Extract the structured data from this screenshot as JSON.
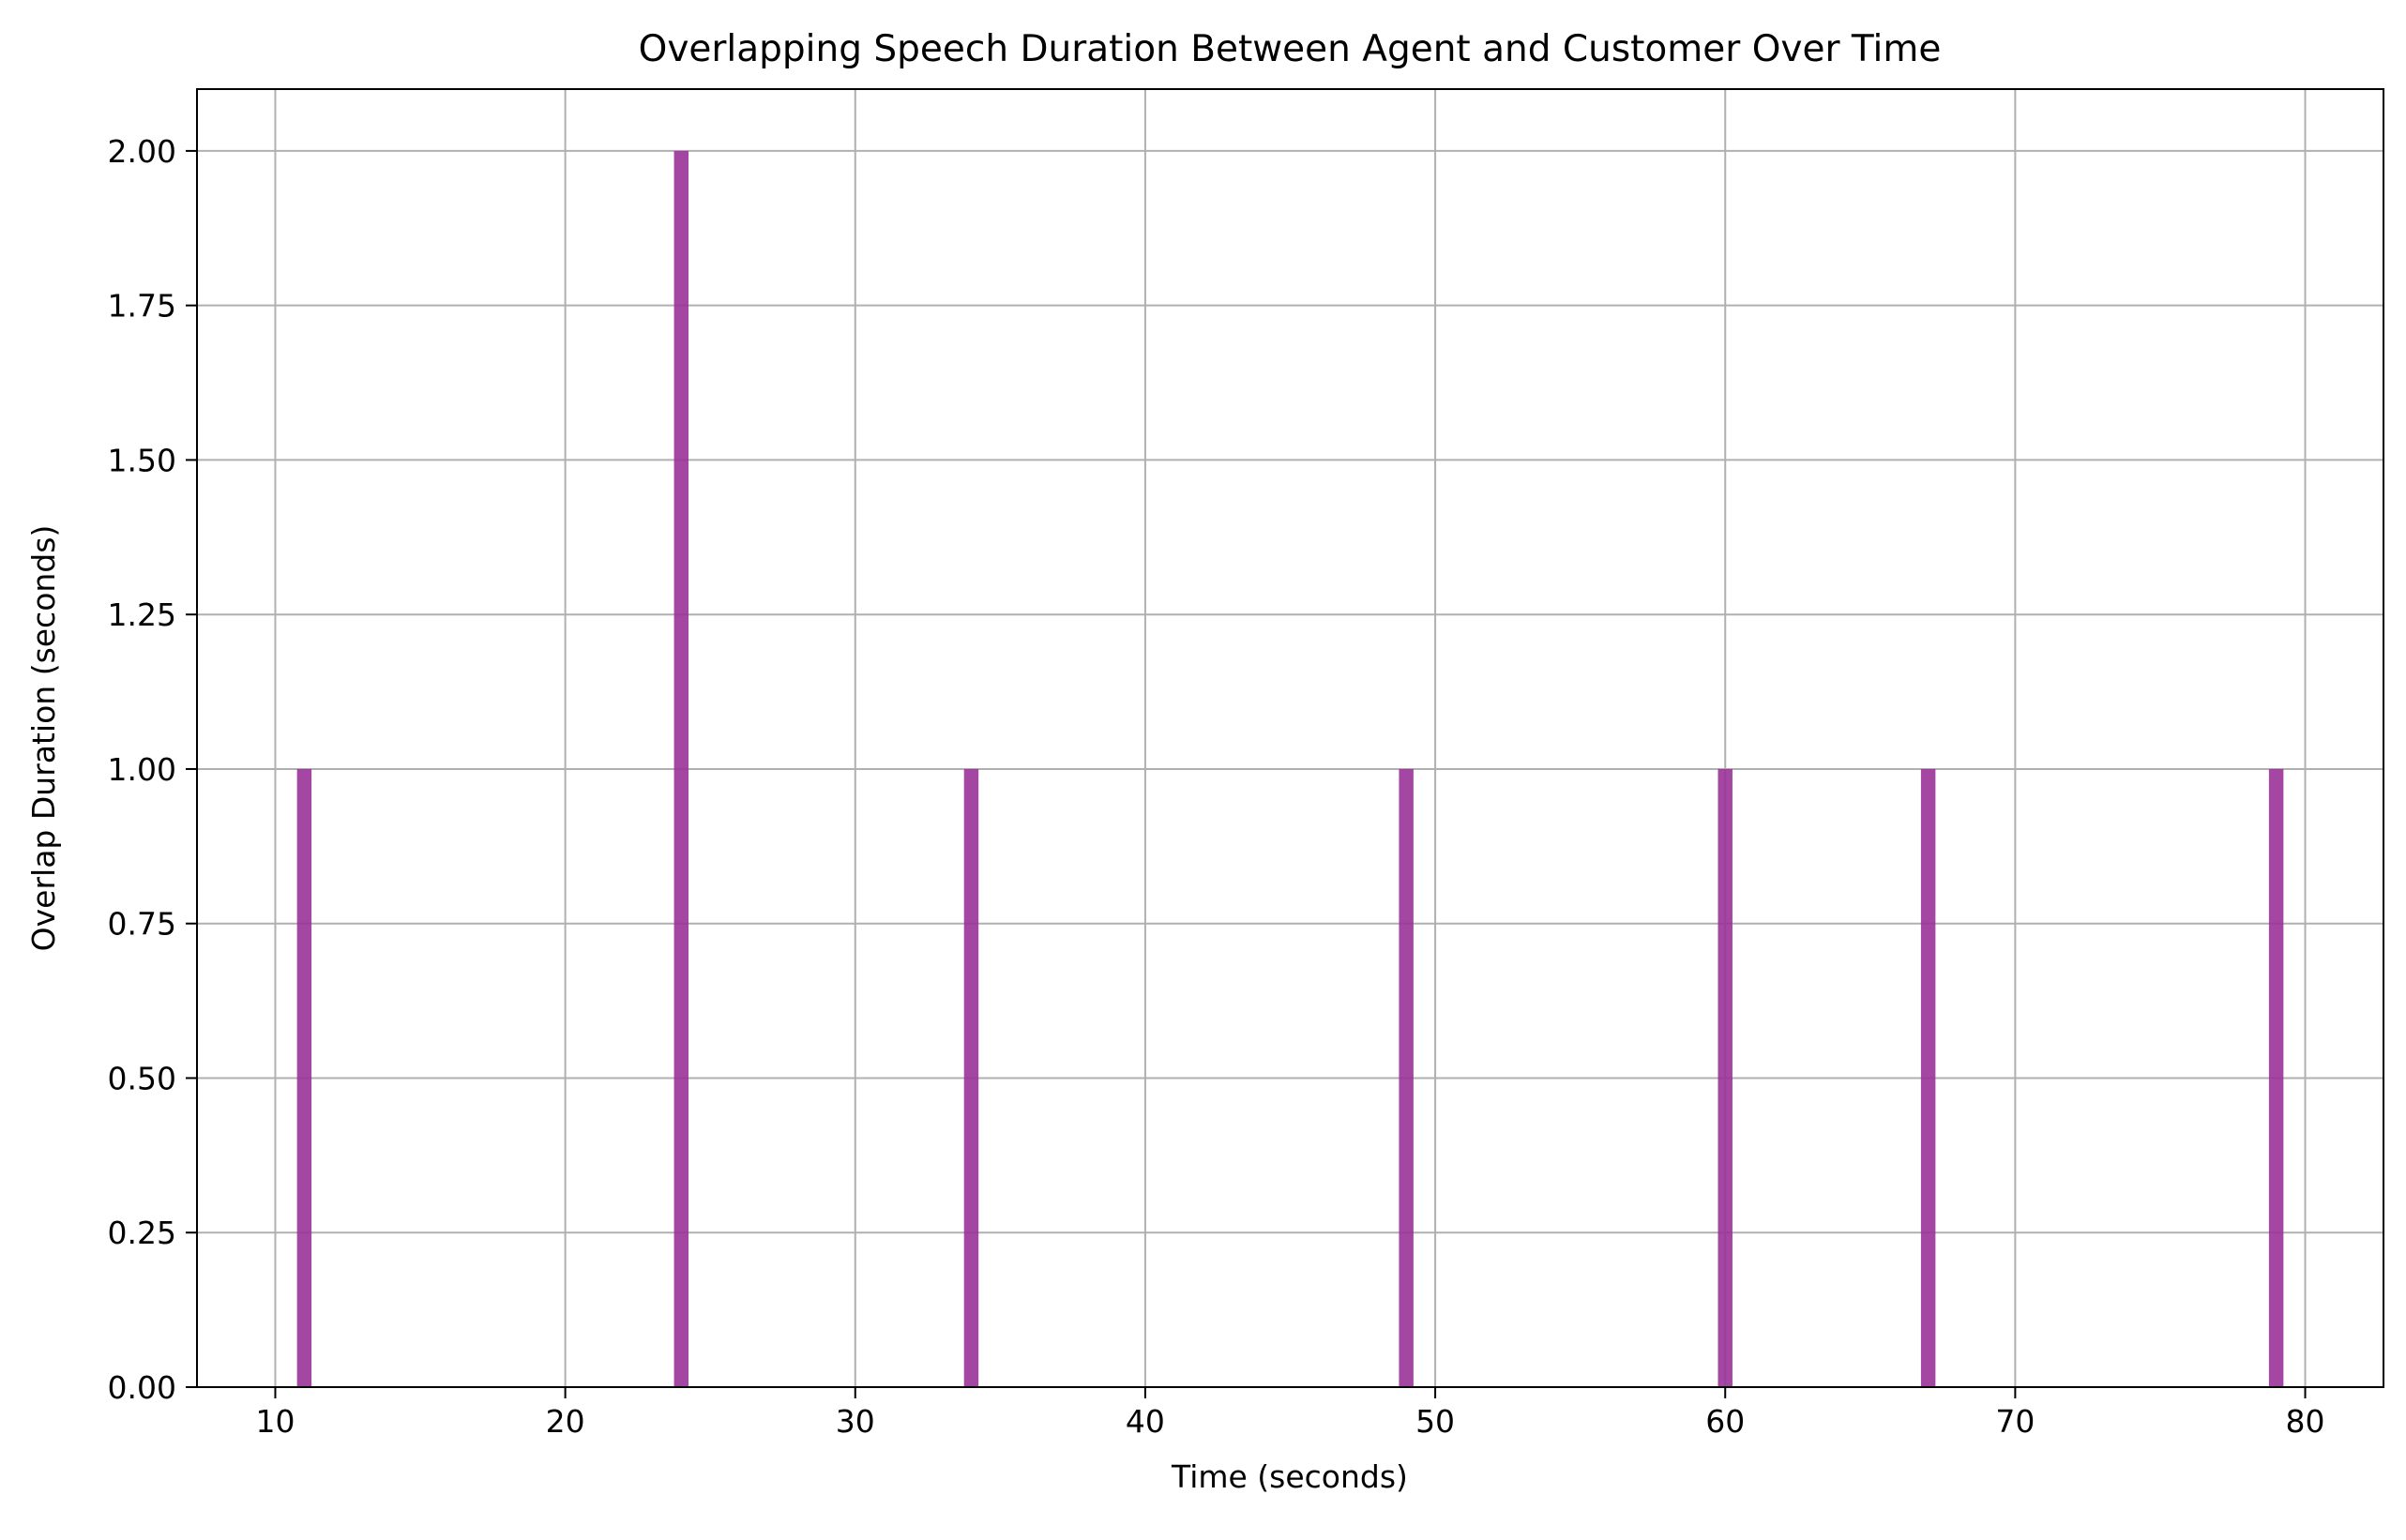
{
  "chart_data": {
    "type": "bar",
    "title": "Overlapping Speech Duration Between Agent and Customer Over Time",
    "xlabel": "Time (seconds)",
    "ylabel": "Overlap Duration (seconds)",
    "x": [
      11,
      24,
      34,
      49,
      60,
      67,
      79
    ],
    "values": [
      1.0,
      2.0,
      1.0,
      1.0,
      1.0,
      1.0,
      1.0
    ],
    "bar_width": 0.5,
    "xlim": [
      7.3,
      82.7
    ],
    "ylim": [
      0,
      2.1
    ],
    "xticks": [
      10,
      20,
      30,
      40,
      50,
      60,
      70,
      80
    ],
    "xtick_labels": [
      "10",
      "20",
      "30",
      "40",
      "50",
      "60",
      "70",
      "80"
    ],
    "yticks": [
      0,
      0.25,
      0.5,
      0.75,
      1.0,
      1.25,
      1.5,
      1.75,
      2.0
    ],
    "ytick_labels": [
      "0.00",
      "0.25",
      "0.50",
      "0.75",
      "1.00",
      "1.25",
      "1.50",
      "1.75",
      "2.00"
    ],
    "grid": true,
    "legend": "none",
    "bar_color": "#993399",
    "bar_alpha": 0.9,
    "grid_color": "#b0b0b0"
  }
}
